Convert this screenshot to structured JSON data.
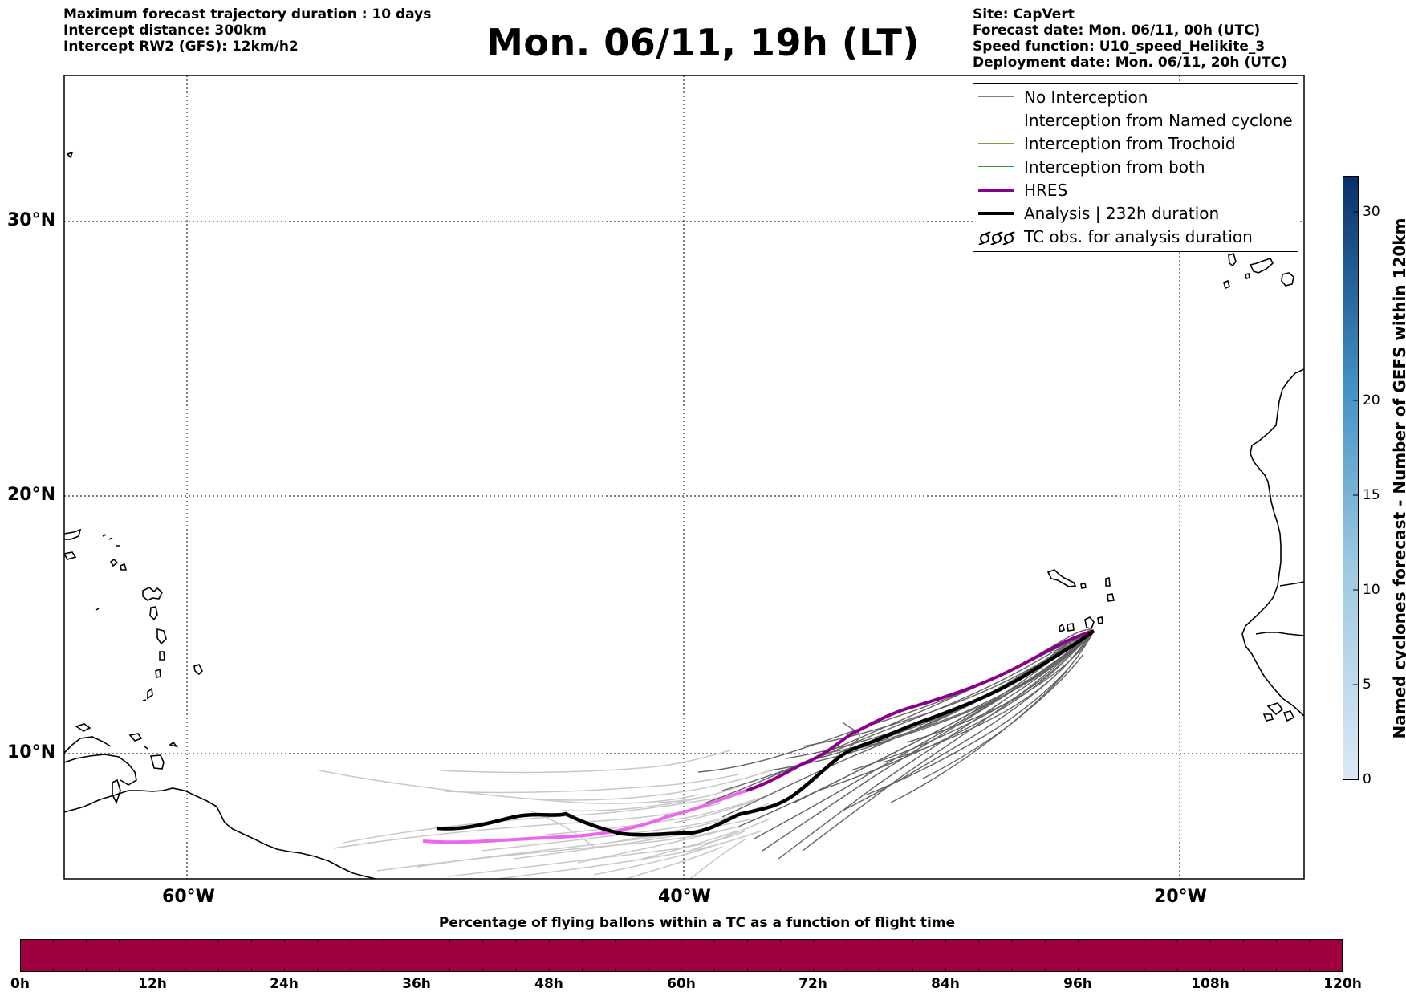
{
  "header": {
    "left_lines": [
      "Maximum forecast trajectory duration : 10 days",
      "Intercept distance: 300km",
      "Intercept RW2 (GFS):  12km/h2"
    ],
    "title": "Mon. 06/11, 19h (LT)",
    "right_lines": [
      "Site: CapVert",
      "Forecast date: Mon. 06/11, 00h (UTC)",
      "Speed function: U10_speed_Helikite_3",
      "Deployment date: Mon. 06/11, 20h (UTC)"
    ]
  },
  "map": {
    "lat_labels": [
      "30°N",
      "20°N",
      "10°N"
    ],
    "lon_labels": [
      "60°W",
      "40°W",
      "20°W"
    ]
  },
  "legend": {
    "items": [
      {
        "label": "No Interception",
        "color": "#808080"
      },
      {
        "label": "Interception from Named cyclone",
        "color": "#ff7f50"
      },
      {
        "label": "Interception from Trochoid",
        "color": "#9a8f3a"
      },
      {
        "label": "Interception from both",
        "color": "#2ca02c"
      },
      {
        "label": "HRES",
        "color": "#8b008b"
      },
      {
        "label": "Analysis | 232h duration",
        "color": "#000000"
      },
      {
        "label": "TC obs. for analysis duration",
        "icon": "cyclone-symbols-icon"
      }
    ]
  },
  "cyclone_colorbar": {
    "label": "Named cyclones forecast - Number of GEFS within 120km",
    "ticks": [
      "0",
      "5",
      "10",
      "15",
      "20",
      "30"
    ]
  },
  "time_colorbar": {
    "title": "Percentage of flying ballons within a TC as a function of flight time",
    "ticks": [
      "0h",
      "12h",
      "24h",
      "36h",
      "48h",
      "60h",
      "72h",
      "84h",
      "96h",
      "108h",
      "120h"
    ],
    "color": "#a00040"
  }
}
